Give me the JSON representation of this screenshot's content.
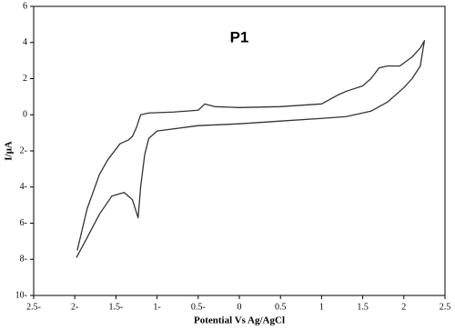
{
  "chart_data": {
    "type": "line",
    "title": "P1",
    "x_label": "Potential Vs Ag/AgCl",
    "y_label": "I/μA",
    "x": [
      -1.97,
      -1.85,
      -1.7,
      -1.6,
      -1.45,
      -1.35,
      -1.3,
      -1.25,
      -1.2,
      -1.1,
      -0.8,
      -0.5,
      -0.42,
      -0.3,
      0,
      0.5,
      1.0,
      1.2,
      1.3,
      1.5,
      1.6,
      1.7,
      1.8,
      1.95,
      2.1,
      2.2,
      2.25,
      2.2,
      2.1,
      2.0,
      1.8,
      1.6,
      1.3,
      1.0,
      0.5,
      0,
      -0.5,
      -1.0,
      -1.1,
      -1.15,
      -1.2,
      -1.23,
      -1.3,
      -1.4,
      -1.55,
      -1.7,
      -1.85,
      -1.98
    ],
    "series": [
      {
        "name": "P1",
        "color": "#333333",
        "values": [
          -7.5,
          -5.2,
          -3.3,
          -2.5,
          -1.6,
          -1.4,
          -1.2,
          -0.7,
          0,
          0.1,
          0.15,
          0.25,
          0.6,
          0.45,
          0.4,
          0.45,
          0.6,
          1.1,
          1.3,
          1.6,
          2.0,
          2.6,
          2.7,
          2.7,
          3.2,
          3.7,
          4.1,
          2.7,
          2.0,
          1.5,
          0.7,
          0.2,
          -0.1,
          -0.2,
          -0.35,
          -0.5,
          -0.6,
          -0.9,
          -1.3,
          -2.2,
          -4.0,
          -5.7,
          -4.7,
          -4.3,
          -4.5,
          -5.5,
          -6.8,
          -7.9
        ]
      }
    ],
    "xlim": [
      -2.5,
      2.5
    ],
    "xticks": [
      {
        "value": -2.5,
        "label": "2.5-"
      },
      {
        "value": -2,
        "label": "2-"
      },
      {
        "value": -1.5,
        "label": "1.5-"
      },
      {
        "value": -1,
        "label": "1-"
      },
      {
        "value": -0.5,
        "label": "0.5-"
      },
      0,
      0.5,
      1,
      1.5,
      2,
      2.5
    ],
    "ylim": [
      -10,
      6
    ],
    "yticks": [
      6,
      4,
      2,
      0,
      {
        "value": -2,
        "label": "2-"
      },
      {
        "value": -4,
        "label": "4-"
      },
      {
        "value": -6,
        "label": "6-"
      },
      {
        "value": -8,
        "label": "8-"
      },
      {
        "value": -10,
        "label": "10-"
      }
    ]
  }
}
